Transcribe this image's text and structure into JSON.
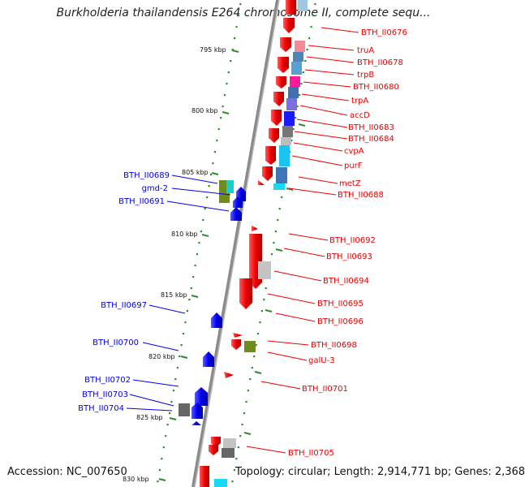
{
  "title": "Burkholderia thailandensis E264 chromosome II, complete sequ...",
  "footer": {
    "accession": "Accession: NC_007650",
    "topology": "Topology: circular; Length: 2,914,771 bp; Genes: 2,368"
  },
  "ticks": [
    "795 kbp",
    "800 kbp",
    "805 kbp",
    "810 kbp",
    "815 kbp",
    "820 kbp",
    "825 kbp",
    "830 kbp"
  ],
  "genes_right": [
    "BTH_II0676",
    "truA",
    "BTH_II0678",
    "trpB",
    "BTH_II0680",
    "trpA",
    "accD",
    "BTH_II0683",
    "BTH_II0684",
    "cvpA",
    "purF",
    "metZ",
    "BTH_II0688",
    "BTH_II0692",
    "BTH_II0693",
    "BTH_II0694",
    "BTH_II0695",
    "BTH_II0696",
    "BTH_II0698",
    "galU-3",
    "BTH_II0701",
    "BTH_II0705"
  ],
  "genes_left": [
    "BTH_II0689",
    "gmd-2",
    "BTH_II0691",
    "BTH_II0697",
    "BTH_II0700",
    "BTH_II0702",
    "BTH_II0703",
    "BTH_II0704"
  ],
  "colors": {
    "forward_strand": "#0000ee",
    "reverse_strand": "#ee0000",
    "gc_track": "#2e8b2e",
    "backbone": "#888888"
  }
}
